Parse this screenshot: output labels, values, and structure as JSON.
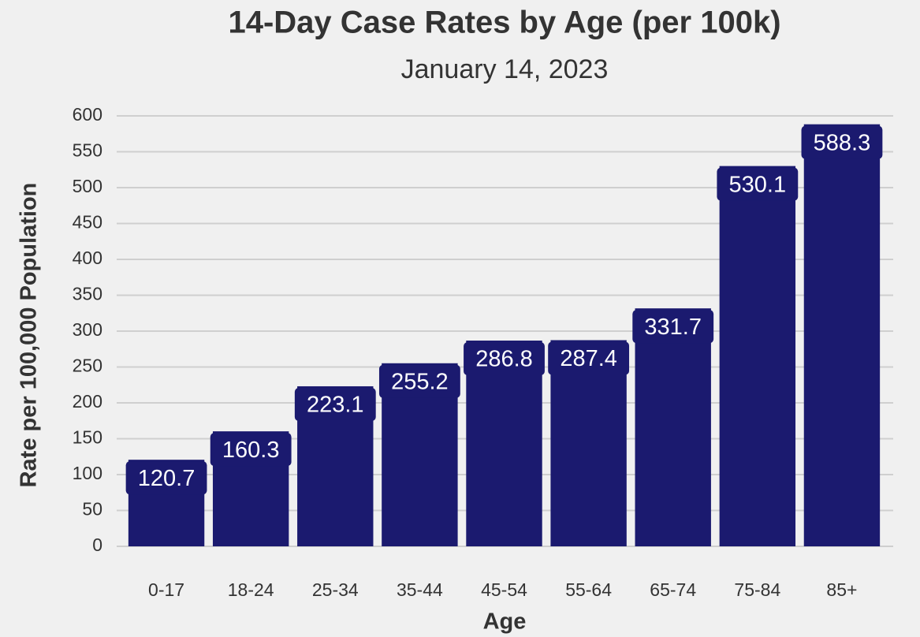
{
  "chart_data": {
    "type": "bar",
    "title": "14-Day Case Rates by Age (per 100k)",
    "subtitle": "January 14, 2023",
    "x_label": "Age",
    "y_label": "Rate per 100,000 Population",
    "categories": [
      "0-17",
      "18-24",
      "25-34",
      "35-44",
      "45-54",
      "55-64",
      "65-74",
      "75-84",
      "85+"
    ],
    "values": [
      120.7,
      160.3,
      223.1,
      255.2,
      286.8,
      287.4,
      331.7,
      530.1,
      588.3
    ],
    "color": "#1b1a6f",
    "ylim": [
      0,
      600
    ],
    "yticks": [
      0,
      50,
      100,
      150,
      200,
      250,
      300,
      350,
      400,
      450,
      500,
      550,
      600
    ],
    "grid": true
  }
}
